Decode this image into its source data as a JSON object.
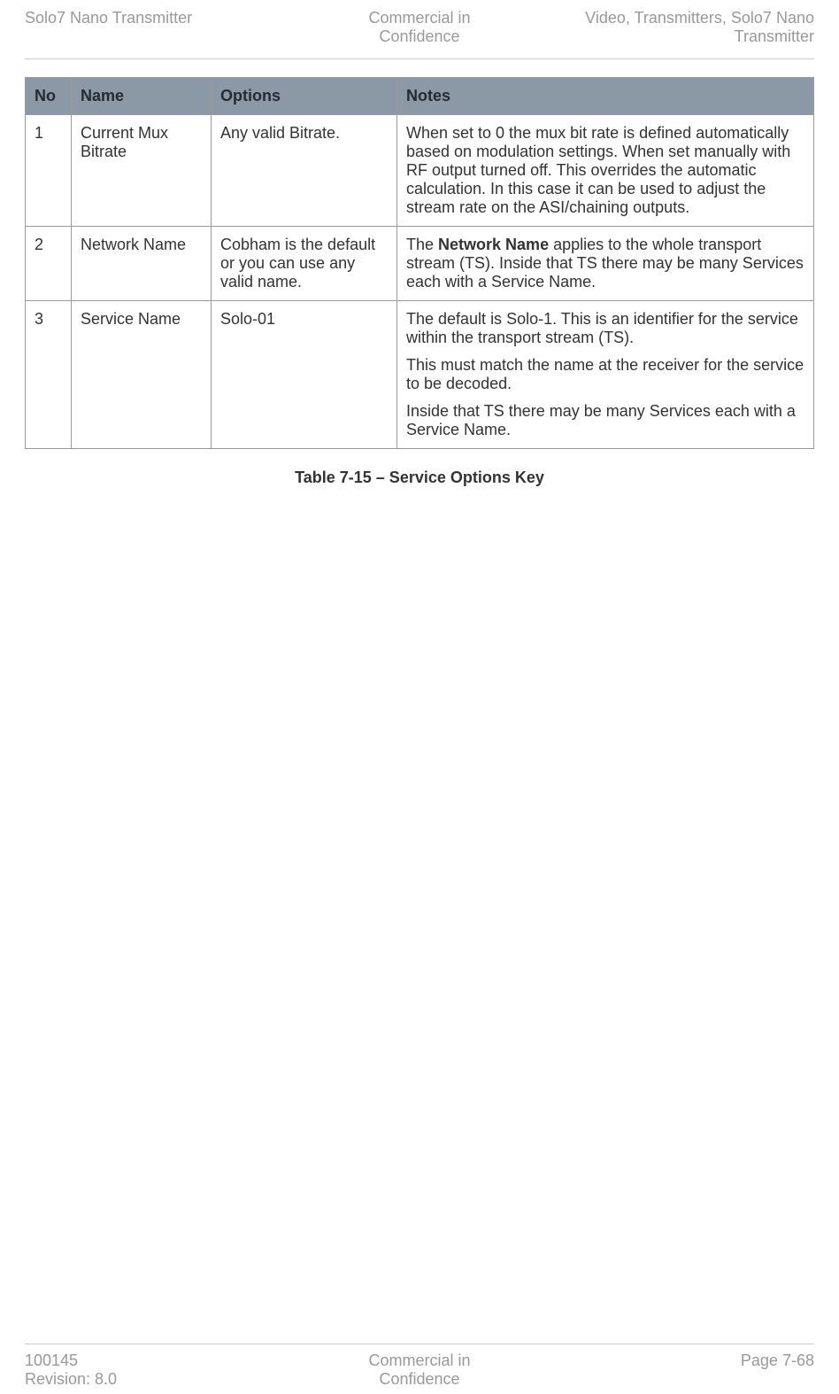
{
  "header": {
    "left": "Solo7 Nano Transmitter",
    "mid_line1": "Commercial in",
    "mid_line2": "Confidence",
    "right_line1": "Video, Transmitters, Solo7 Nano",
    "right_line2": "Transmitter"
  },
  "table": {
    "headers": {
      "no": "No",
      "name": "Name",
      "options": "Options",
      "notes": "Notes"
    },
    "rows": [
      {
        "no": "1",
        "name": "Current Mux Bitrate",
        "options": "Any valid Bitrate.",
        "notes_p1": "When set to 0 the mux bit rate is defined automatically based on modulation settings. When set manually with RF output turned off. This overrides the automatic calculation. In this case it can be used to adjust the stream rate on the ASI/chaining outputs."
      },
      {
        "no": "2",
        "name": "Network Name",
        "options": "Cobham is the default or you can use any valid name.",
        "notes_pre": "The ",
        "notes_bold": "Network Name",
        "notes_post": " applies to the whole transport stream (TS). Inside that TS there may be many Services each with a Service Name."
      },
      {
        "no": "3",
        "name": "Service Name",
        "options": "Solo-01",
        "notes_p1": "The default is Solo-1. This is an identifier for the service within the transport stream (TS).",
        "notes_p2": "This must match the name at the receiver for the service to be decoded.",
        "notes_p3": "Inside that TS there may be many Services each with a Service Name."
      }
    ]
  },
  "caption": "Table 7-15 – Service Options Key",
  "footer": {
    "left_line1": "100145",
    "left_line2": "Revision: 8.0",
    "mid_line1": "Commercial in",
    "mid_line2": "Confidence",
    "right": "Page 7-68"
  },
  "style": {
    "header_color": "#999999",
    "th_bg": "#8b98a6",
    "th_fg": "#242b34",
    "border_color": "#999999",
    "divider_color": "#cccccc",
    "body_fontsize": 18
  }
}
